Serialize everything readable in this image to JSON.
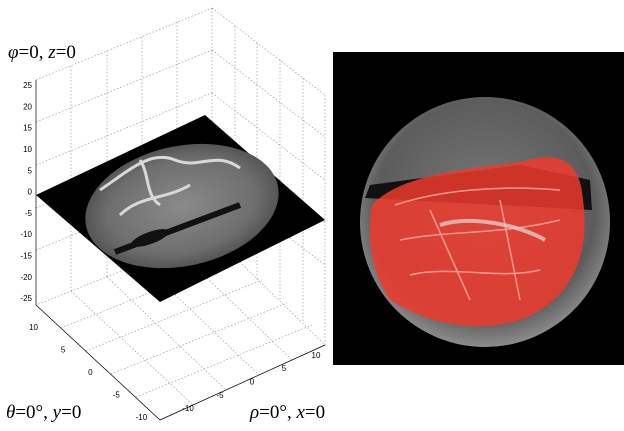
{
  "labels": {
    "phi": [
      "φ",
      "=0, ",
      "z",
      "=0"
    ],
    "theta": [
      "θ",
      "=0°, ",
      "y",
      "=0"
    ],
    "rho": [
      "ρ",
      "=0°, ",
      "x",
      "=0"
    ]
  },
  "axes": {
    "z_ticks": [
      25,
      20,
      15,
      10,
      5,
      0,
      -5,
      -10,
      -15,
      -20,
      -25
    ],
    "y_ticks": [
      10,
      5,
      0,
      -5,
      -10
    ],
    "x_ticks": [
      -10,
      -5,
      0,
      5,
      10
    ]
  }
}
